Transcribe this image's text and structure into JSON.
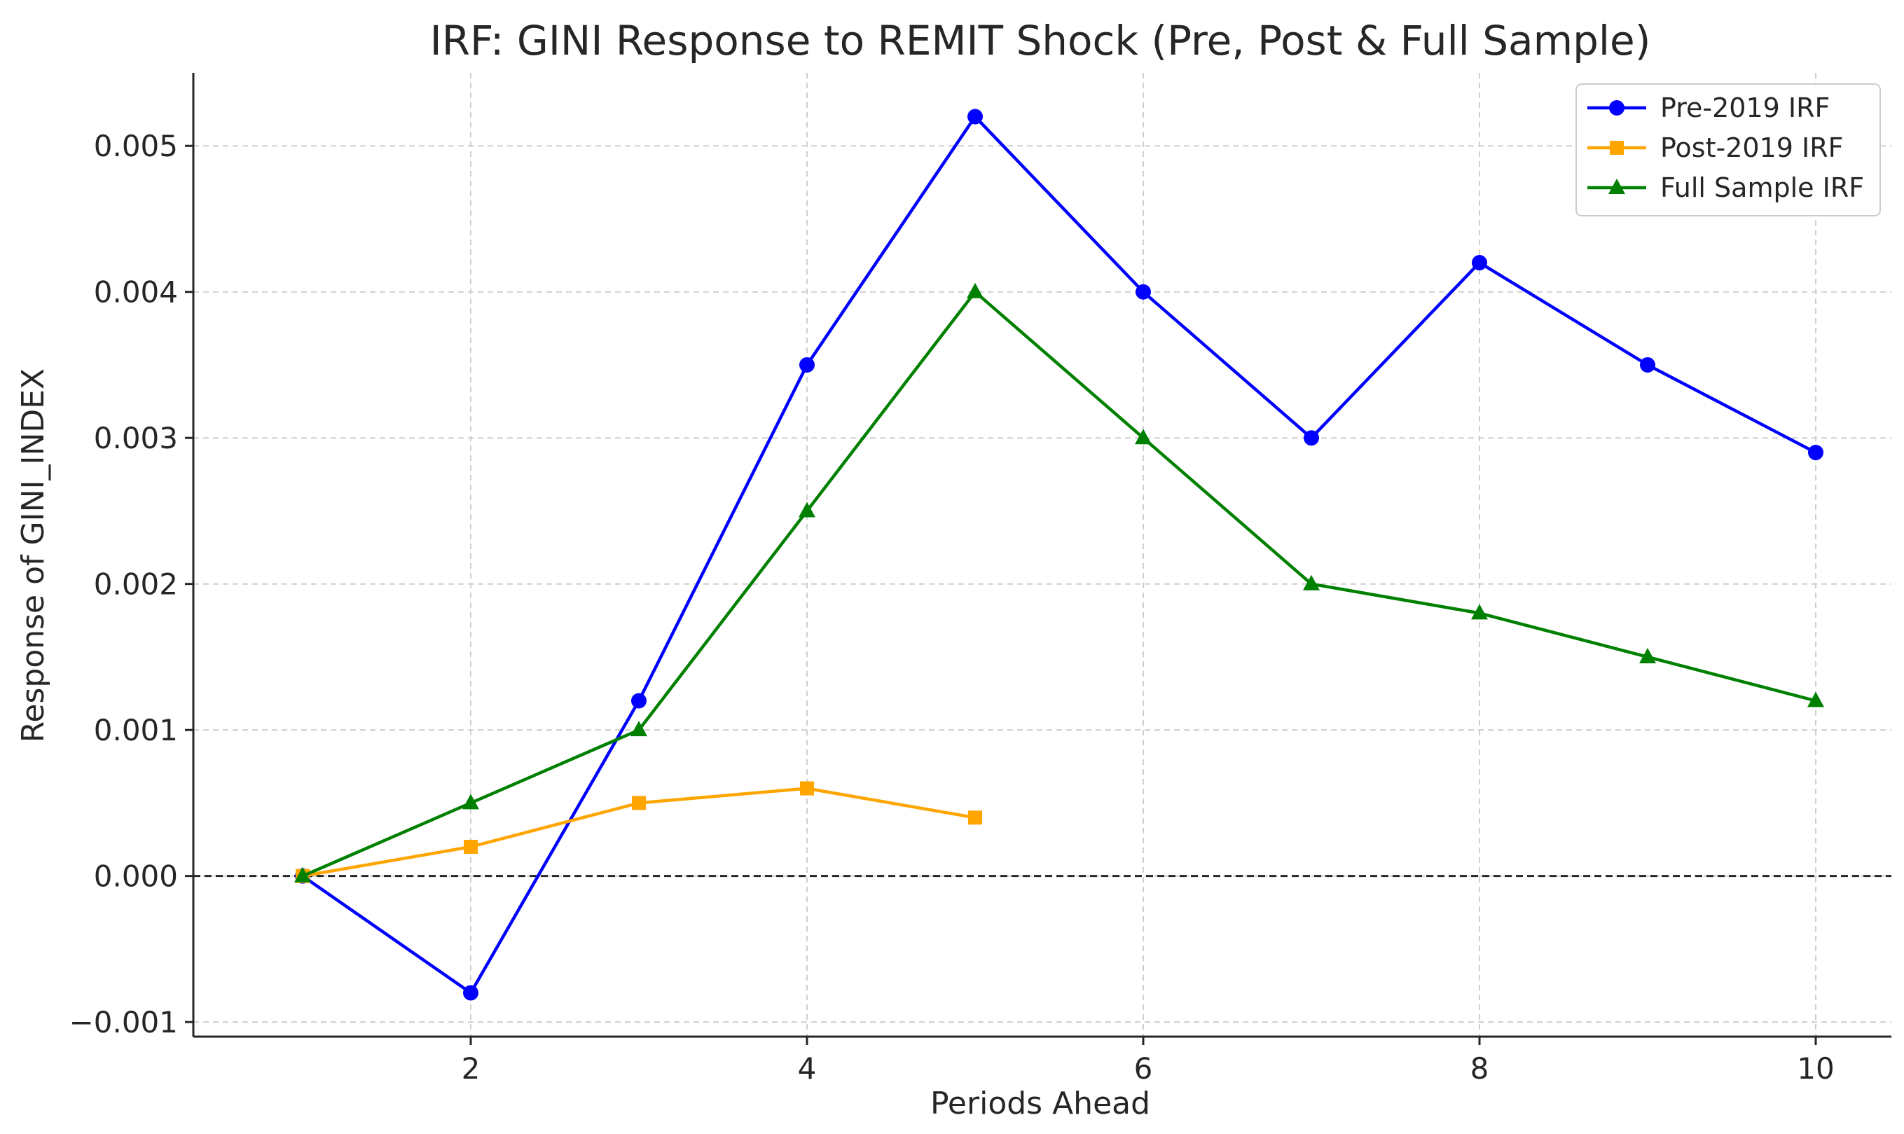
{
  "chart_data": {
    "type": "line",
    "title": "IRF: GINI Response to REMIT Shock (Pre, Post & Full Sample)",
    "xlabel": "Periods Ahead",
    "ylabel": "Response of GINI_INDEX",
    "xlim": [
      0.35,
      10.45
    ],
    "ylim": [
      -0.0011,
      0.0055
    ],
    "xticks": [
      2,
      4,
      6,
      8,
      10
    ],
    "xtick_labels": [
      "2",
      "4",
      "6",
      "8",
      "10"
    ],
    "yticks": [
      -0.001,
      0.0,
      0.001,
      0.002,
      0.003,
      0.004,
      0.005
    ],
    "ytick_labels": [
      "−0.001",
      "0.000",
      "0.001",
      "0.002",
      "0.003",
      "0.004",
      "0.005"
    ],
    "grid": true,
    "reference_line": {
      "y": 0,
      "style": "dashed",
      "color": "#000000"
    },
    "legend_position": "top-right",
    "series": [
      {
        "name": "Pre-2019 IRF",
        "color": "#0000ff",
        "marker": "circle",
        "x": [
          1,
          2,
          3,
          4,
          5,
          6,
          7,
          8,
          9,
          10
        ],
        "values": [
          0.0,
          -0.0008,
          0.0012,
          0.0035,
          0.0052,
          0.004,
          0.003,
          0.0042,
          0.0035,
          0.0029
        ]
      },
      {
        "name": "Post-2019 IRF",
        "color": "#ffa500",
        "marker": "square",
        "x": [
          1,
          2,
          3,
          4,
          5
        ],
        "values": [
          0.0,
          0.0002,
          0.0005,
          0.0006,
          0.0004
        ]
      },
      {
        "name": "Full Sample IRF",
        "color": "#008000",
        "marker": "triangle",
        "x": [
          1,
          2,
          3,
          4,
          5,
          6,
          7,
          8,
          9,
          10
        ],
        "values": [
          0.0,
          0.0005,
          0.001,
          0.0025,
          0.004,
          0.003,
          0.002,
          0.0018,
          0.0015,
          0.0012
        ]
      }
    ]
  }
}
